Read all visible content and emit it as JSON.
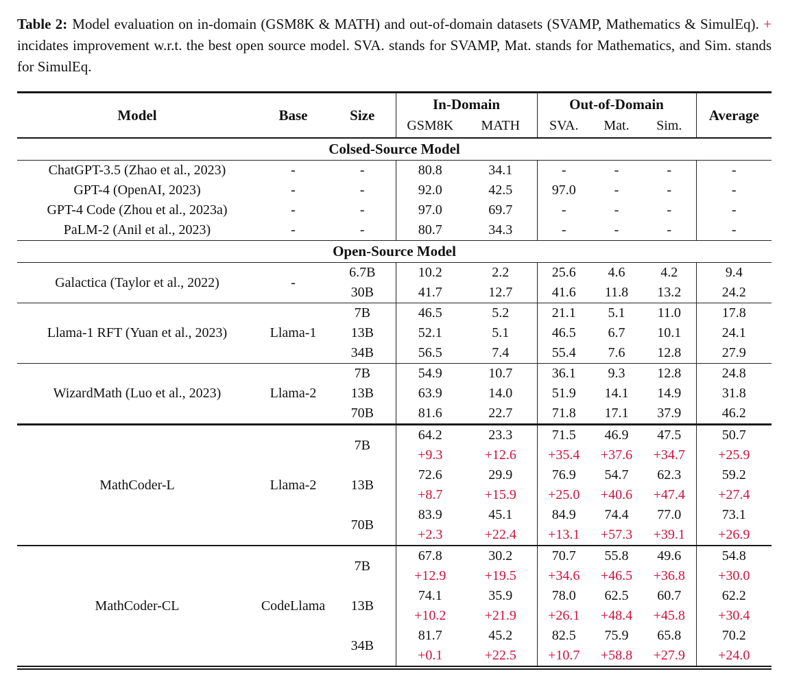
{
  "accent_color": "#d0103a",
  "caption": {
    "label": "Table 2:",
    "part1": "Model evaluation on in-domain (GSM8K & MATH) and out-of-domain datasets (SVAMP, Mathematics & SimulEq).",
    "plus": "+",
    "part2": "incidates improvement w.r.t. the best open source model. SVA. stands for SVAMP, Mat. stands for Mathematics, and Sim. stands for SimulEq."
  },
  "table": {
    "columns": [
      "Model",
      "Base",
      "Size",
      "GSM8K",
      "MATH",
      "SVA.",
      "Mat.",
      "Sim.",
      "Average"
    ],
    "in_domain_label": "In-Domain",
    "out_of_domain_label": "Out-of-Domain",
    "sections": [
      {
        "title": "Colsed-Source Model",
        "groups": [
          {
            "model": "ChatGPT-3.5 (Zhao et al., 2023)",
            "base": "-",
            "rule": "none",
            "rows": [
              {
                "size": "-",
                "values": [
                  "80.8",
                  "34.1",
                  "-",
                  "-",
                  "-",
                  "-"
                ]
              }
            ]
          },
          {
            "model": "GPT-4 (OpenAI, 2023)",
            "base": "-",
            "rule": "none",
            "rows": [
              {
                "size": "-",
                "values": [
                  "92.0",
                  "42.5",
                  "97.0",
                  "-",
                  "-",
                  "-"
                ]
              }
            ]
          },
          {
            "model": "GPT-4 Code (Zhou et al., 2023a)",
            "base": "-",
            "rule": "none",
            "rows": [
              {
                "size": "-",
                "values": [
                  "97.0",
                  "69.7",
                  "-",
                  "-",
                  "-",
                  "-"
                ]
              }
            ]
          },
          {
            "model": "PaLM-2 (Anil et al., 2023)",
            "base": "-",
            "rule": "none",
            "rows": [
              {
                "size": "-",
                "values": [
                  "80.7",
                  "34.3",
                  "-",
                  "-",
                  "-",
                  "-"
                ]
              }
            ]
          }
        ]
      },
      {
        "title": "Open-Source Model",
        "groups": [
          {
            "model": "Galactica (Taylor et al., 2022)",
            "base": "-",
            "rule": "none",
            "rows": [
              {
                "size": "6.7B",
                "values": [
                  "10.2",
                  "2.2",
                  "25.6",
                  "4.6",
                  "4.2",
                  "9.4"
                ]
              },
              {
                "size": "30B",
                "values": [
                  "41.7",
                  "12.7",
                  "41.6",
                  "11.8",
                  "13.2",
                  "24.2"
                ]
              }
            ]
          },
          {
            "model": "Llama-1 RFT (Yuan et al., 2023)",
            "base": "Llama-1",
            "rule": "thin",
            "rows": [
              {
                "size": "7B",
                "values": [
                  "46.5",
                  "5.2",
                  "21.1",
                  "5.1",
                  "11.0",
                  "17.8"
                ]
              },
              {
                "size": "13B",
                "values": [
                  "52.1",
                  "5.1",
                  "46.5",
                  "6.7",
                  "10.1",
                  "24.1"
                ]
              },
              {
                "size": "34B",
                "values": [
                  "56.5",
                  "7.4",
                  "55.4",
                  "7.6",
                  "12.8",
                  "27.9"
                ]
              }
            ]
          },
          {
            "model": "WizardMath (Luo et al., 2023)",
            "base": "Llama-2",
            "rule": "thin",
            "rows": [
              {
                "size": "7B",
                "values": [
                  "54.9",
                  "10.7",
                  "36.1",
                  "9.3",
                  "12.8",
                  "24.8"
                ]
              },
              {
                "size": "13B",
                "values": [
                  "63.9",
                  "14.0",
                  "51.9",
                  "14.1",
                  "14.9",
                  "31.8"
                ]
              },
              {
                "size": "70B",
                "values": [
                  "81.6",
                  "22.7",
                  "71.8",
                  "17.1",
                  "37.9",
                  "46.2"
                ]
              }
            ]
          },
          {
            "model": "MathCoder-L",
            "base": "Llama-2",
            "rule": "thick",
            "rows": [
              {
                "size": "7B",
                "values": [
                  "64.2",
                  "23.3",
                  "71.5",
                  "46.9",
                  "47.5",
                  "50.7"
                ],
                "delta": [
                  "+9.3",
                  "+12.6",
                  "+35.4",
                  "+37.6",
                  "+34.7",
                  "+25.9"
                ]
              },
              {
                "size": "13B",
                "values": [
                  "72.6",
                  "29.9",
                  "76.9",
                  "54.7",
                  "62.3",
                  "59.2"
                ],
                "delta": [
                  "+8.7",
                  "+15.9",
                  "+25.0",
                  "+40.6",
                  "+47.4",
                  "+27.4"
                ]
              },
              {
                "size": "70B",
                "values": [
                  "83.9",
                  "45.1",
                  "84.9",
                  "74.4",
                  "77.0",
                  "73.1"
                ],
                "delta": [
                  "+2.3",
                  "+22.4",
                  "+13.1",
                  "+57.3",
                  "+39.1",
                  "+26.9"
                ]
              }
            ]
          },
          {
            "model": "MathCoder-CL",
            "base": "CodeLlama",
            "rule": "med",
            "rows": [
              {
                "size": "7B",
                "values": [
                  "67.8",
                  "30.2",
                  "70.7",
                  "55.8",
                  "49.6",
                  "54.8"
                ],
                "delta": [
                  "+12.9",
                  "+19.5",
                  "+34.6",
                  "+46.5",
                  "+36.8",
                  "+30.0"
                ]
              },
              {
                "size": "13B",
                "values": [
                  "74.1",
                  "35.9",
                  "78.0",
                  "62.5",
                  "60.7",
                  "62.2"
                ],
                "delta": [
                  "+10.2",
                  "+21.9",
                  "+26.1",
                  "+48.4",
                  "+45.8",
                  "+30.4"
                ]
              },
              {
                "size": "34B",
                "values": [
                  "81.7",
                  "45.2",
                  "82.5",
                  "75.9",
                  "65.8",
                  "70.2"
                ],
                "delta": [
                  "+0.1",
                  "+22.5",
                  "+10.7",
                  "+58.8",
                  "+27.9",
                  "+24.0"
                ]
              }
            ]
          }
        ]
      }
    ]
  }
}
